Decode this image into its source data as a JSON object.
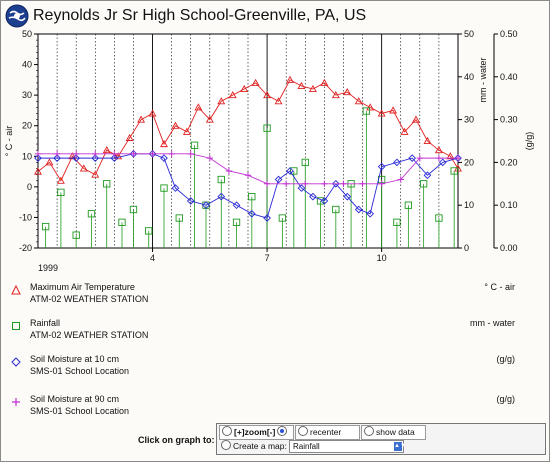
{
  "header": {
    "title": "Reynolds Jr Sr High School-Greenville, PA, US"
  },
  "chart_data": {
    "type": "line",
    "title": "Reynolds Jr Sr High School-Greenville, PA, US",
    "year_label": "1999",
    "x_ticks": [
      "4",
      "7",
      "10"
    ],
    "x_tick_months": [
      4,
      7,
      10
    ],
    "x_range_months": [
      1,
      12
    ],
    "left_axis": {
      "label": "° C - air",
      "range": [
        -20,
        50
      ],
      "ticks": [
        "-20",
        "-10",
        "0",
        "10",
        "20",
        "30",
        "40",
        "50"
      ],
      "tick_values": [
        -20,
        -10,
        0,
        10,
        20,
        30,
        40,
        50
      ]
    },
    "right_axis_mm": {
      "label": "mm - water",
      "range": [
        0,
        50
      ],
      "ticks": [
        "0",
        "10",
        "20",
        "30",
        "40",
        "50"
      ],
      "tick_values": [
        0,
        10,
        20,
        30,
        40,
        50
      ]
    },
    "right_axis_gg": {
      "label": "(g/g)",
      "range": [
        0,
        0.5
      ],
      "ticks": [
        "0.00",
        "0.10",
        "0.20",
        "0.30",
        "0.40",
        "0.50"
      ],
      "tick_values": [
        0,
        0.1,
        0.2,
        0.3,
        0.4,
        0.5
      ]
    },
    "grid": "vertical dashed lines",
    "series": [
      {
        "name": "Maximum Air Temperature",
        "site": "ATM-02 WEATHER STATION",
        "unit": "° C - air",
        "axis": "left",
        "marker": "triangle",
        "color": "#e02020",
        "x": [
          1.0,
          1.3,
          1.6,
          1.9,
          2.2,
          2.5,
          2.8,
          3.1,
          3.4,
          3.7,
          4.0,
          4.3,
          4.6,
          4.9,
          5.2,
          5.5,
          5.8,
          6.1,
          6.4,
          6.7,
          7.0,
          7.3,
          7.6,
          7.9,
          8.2,
          8.5,
          8.8,
          9.1,
          9.4,
          9.7,
          10.0,
          10.3,
          10.6,
          10.9,
          11.2,
          11.5,
          11.8,
          12.0
        ],
        "y": [
          5,
          8,
          2,
          10,
          6,
          4,
          12,
          10,
          16,
          22,
          24,
          14,
          20,
          18,
          26,
          22,
          28,
          30,
          32,
          34,
          30,
          28,
          35,
          33,
          32,
          34,
          30,
          31,
          28,
          26,
          24,
          25,
          18,
          22,
          15,
          12,
          10,
          6
        ]
      },
      {
        "name": "Rainfall",
        "site": "ATM-02 WEATHER STATION",
        "unit": "mm - water",
        "axis": "right_mm",
        "marker": "square",
        "color": "#1f9a1f",
        "x": [
          1.2,
          1.6,
          2.0,
          2.4,
          2.8,
          3.2,
          3.5,
          3.9,
          4.3,
          4.7,
          5.1,
          5.4,
          5.8,
          6.2,
          6.6,
          7.0,
          7.4,
          7.7,
          8.0,
          8.4,
          8.8,
          9.2,
          9.6,
          10.0,
          10.4,
          10.7,
          11.1,
          11.5,
          11.9
        ],
        "y": [
          5,
          13,
          3,
          8,
          15,
          6,
          9,
          4,
          14,
          7,
          24,
          10,
          16,
          6,
          12,
          28,
          7,
          18,
          20,
          11,
          9,
          15,
          32,
          16,
          6,
          10,
          15,
          7,
          18
        ]
      },
      {
        "name": "Soil Moisture at 10 cm",
        "site": "SMS-01 School Location",
        "unit": "(g/g)",
        "axis": "right_gg",
        "marker": "diamond",
        "color": "#2a2ad6",
        "x": [
          1.0,
          1.5,
          2.0,
          2.5,
          3.0,
          3.5,
          4.0,
          4.3,
          4.6,
          5.0,
          5.4,
          5.8,
          6.2,
          6.6,
          7.0,
          7.3,
          7.6,
          7.9,
          8.2,
          8.5,
          8.8,
          9.1,
          9.4,
          9.7,
          10.0,
          10.4,
          10.8,
          11.2,
          11.6,
          12.0
        ],
        "y": [
          0.21,
          0.21,
          0.21,
          0.21,
          0.21,
          0.22,
          0.22,
          0.21,
          0.14,
          0.11,
          0.1,
          0.12,
          0.1,
          0.08,
          0.07,
          0.16,
          0.18,
          0.14,
          0.12,
          0.11,
          0.15,
          0.12,
          0.09,
          0.08,
          0.19,
          0.2,
          0.21,
          0.17,
          0.2,
          0.21
        ]
      },
      {
        "name": "Soil Moisture at 90 cm",
        "site": "SMS-01 School Location",
        "unit": "(g/g)",
        "axis": "right_gg",
        "marker": "plus",
        "color": "#c030d0",
        "x": [
          1.0,
          1.5,
          2.0,
          2.5,
          3.0,
          3.5,
          4.0,
          4.5,
          5.0,
          5.5,
          6.0,
          6.5,
          7.0,
          7.5,
          8.0,
          8.5,
          9.0,
          9.5,
          10.0,
          10.5,
          11.0,
          11.5,
          12.0
        ],
        "y": [
          0.22,
          0.22,
          0.22,
          0.22,
          0.22,
          0.22,
          0.22,
          0.22,
          0.22,
          0.21,
          0.18,
          0.17,
          0.15,
          0.15,
          0.15,
          0.15,
          0.15,
          0.15,
          0.15,
          0.16,
          0.21,
          0.21,
          0.21
        ]
      }
    ]
  },
  "controls": {
    "click_label": "Click on graph to:",
    "zoom_label": "[+]zoom[-]",
    "recenter_label": "recenter",
    "show_data_label": "show data",
    "create_map_label": "Create a map:",
    "map_selected": "Rainfall"
  }
}
